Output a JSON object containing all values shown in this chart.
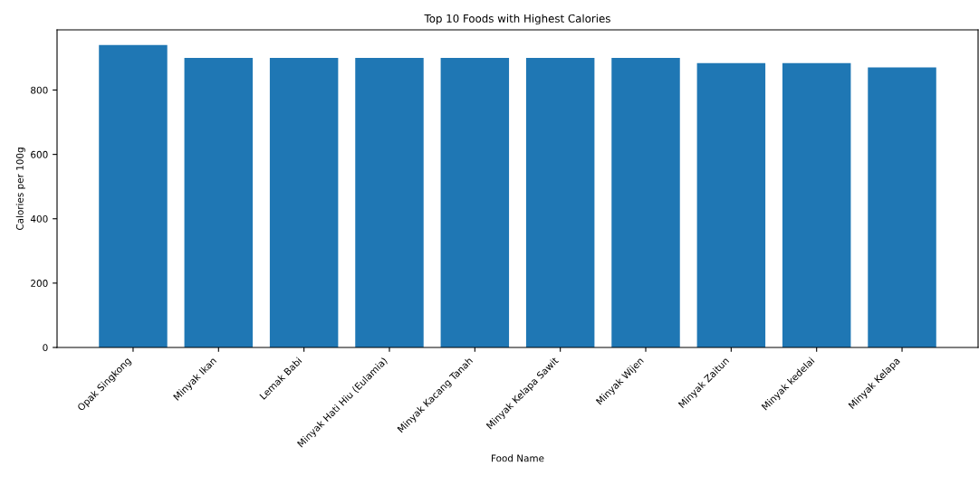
{
  "chart_data": {
    "type": "bar",
    "title": "Top 10 Foods with Highest Calories",
    "xlabel": "Food Name",
    "ylabel": "Calories per 100g",
    "categories": [
      "Opak Singkong",
      "Minyak Ikan",
      "Lemak Babi",
      "Minyak Hati Hiu (Eulamia)",
      "Minyak Kacang Tanah",
      "Minyak Kelapa Sawit",
      "Minyak Wijen",
      "Minyak Zaitun",
      "Minyak kedelai",
      "Minyak Kelapa"
    ],
    "values": [
      940,
      900,
      900,
      900,
      900,
      900,
      900,
      884,
      884,
      870
    ],
    "color": "#1f77b4",
    "ylim": [
      0,
      987
    ],
    "yticks": [
      0,
      200,
      400,
      600,
      800
    ],
    "grid": false,
    "legend": false
  }
}
